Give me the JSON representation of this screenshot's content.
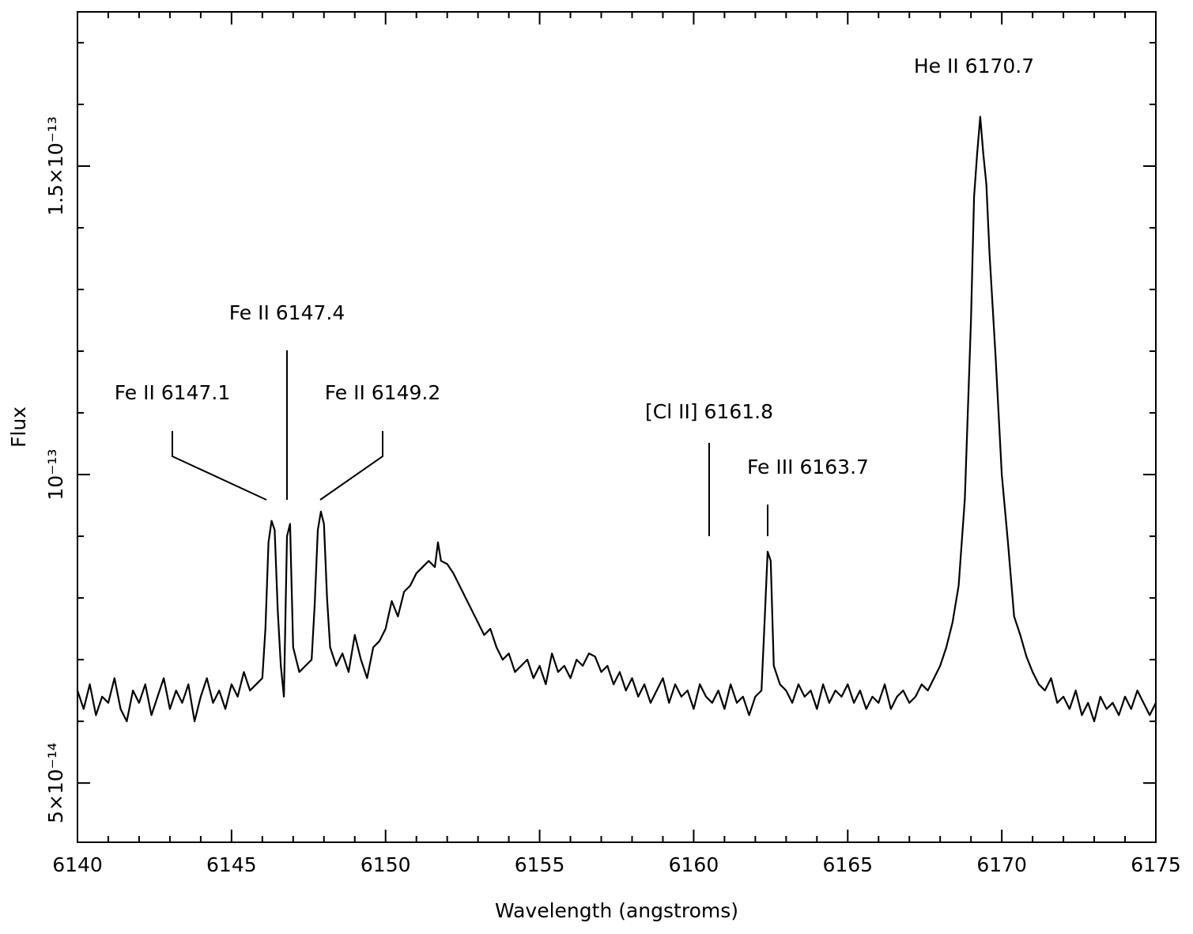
{
  "chart_data": {
    "type": "line",
    "x_label": "Wavelength (angstroms)",
    "y_label": "Flux",
    "color": "#000000",
    "xlim": [
      6140,
      6175
    ],
    "xticks": [
      6140,
      6145,
      6150,
      6155,
      6160,
      6165,
      6170,
      6175
    ],
    "xminorticks": [
      6141,
      6142,
      6143,
      6144,
      6146,
      6147,
      6148,
      6149,
      6151,
      6152,
      6153,
      6154,
      6156,
      6157,
      6158,
      6159,
      6161,
      6162,
      6163,
      6164,
      6166,
      6167,
      6168,
      6169,
      6171,
      6172,
      6173,
      6174
    ],
    "ylim": [
      4.04e-14,
      1.75e-13
    ],
    "yticks": [
      {
        "value": 5e-14,
        "label": "5×10⁻¹⁴"
      },
      {
        "value": 1e-13,
        "label": "10⁻¹³"
      },
      {
        "value": 1.5e-13,
        "label": "1.5×10⁻¹³"
      }
    ],
    "yminorticks": [
      6e-14,
      7e-14,
      8e-14,
      9e-14,
      1.1e-13,
      1.2e-13,
      1.3e-13,
      1.4e-13,
      1.6e-13,
      1.7e-13
    ],
    "annotations": [
      "He II 6170.7",
      "Fe II 6147.4",
      "Fe II 6147.1",
      "Fe II 6149.2",
      "[Cl II] 6161.8",
      "Fe III 6163.7"
    ],
    "x": [
      6140.0,
      6140.2,
      6140.4,
      6140.6,
      6140.8,
      6141.0,
      6141.2,
      6141.4,
      6141.6,
      6141.8,
      6142.0,
      6142.2,
      6142.4,
      6142.6,
      6142.8,
      6143.0,
      6143.2,
      6143.4,
      6143.6,
      6143.8,
      6144.0,
      6144.2,
      6144.4,
      6144.6,
      6144.8,
      6145.0,
      6145.2,
      6145.4,
      6145.6,
      6145.8,
      6146.0,
      6146.1,
      6146.2,
      6146.3,
      6146.4,
      6146.5,
      6146.6,
      6146.7,
      6146.8,
      6146.9,
      6147.0,
      6147.2,
      6147.4,
      6147.6,
      6147.7,
      6147.8,
      6147.9,
      6148.0,
      6148.1,
      6148.2,
      6148.4,
      6148.6,
      6148.8,
      6149.0,
      6149.2,
      6149.4,
      6149.6,
      6149.8,
      6150.0,
      6150.2,
      6150.4,
      6150.6,
      6150.8,
      6151.0,
      6151.2,
      6151.4,
      6151.6,
      6151.7,
      6151.8,
      6152.0,
      6152.2,
      6152.4,
      6152.6,
      6152.8,
      6153.0,
      6153.2,
      6153.4,
      6153.6,
      6153.8,
      6154.0,
      6154.2,
      6154.4,
      6154.6,
      6154.8,
      6155.0,
      6155.2,
      6155.4,
      6155.6,
      6155.8,
      6156.0,
      6156.2,
      6156.4,
      6156.6,
      6156.8,
      6157.0,
      6157.2,
      6157.4,
      6157.6,
      6157.8,
      6158.0,
      6158.2,
      6158.4,
      6158.6,
      6158.8,
      6159.0,
      6159.2,
      6159.4,
      6159.6,
      6159.8,
      6160.0,
      6160.2,
      6160.4,
      6160.6,
      6160.8,
      6161.0,
      6161.2,
      6161.4,
      6161.6,
      6161.8,
      6162.0,
      6162.2,
      6162.3,
      6162.4,
      6162.5,
      6162.6,
      6162.8,
      6163.0,
      6163.2,
      6163.4,
      6163.6,
      6163.8,
      6164.0,
      6164.2,
      6164.4,
      6164.6,
      6164.8,
      6165.0,
      6165.2,
      6165.4,
      6165.6,
      6165.8,
      6166.0,
      6166.2,
      6166.4,
      6166.6,
      6166.8,
      6167.0,
      6167.2,
      6167.4,
      6167.6,
      6167.8,
      6168.0,
      6168.2,
      6168.4,
      6168.6,
      6168.8,
      6169.0,
      6169.1,
      6169.2,
      6169.3,
      6169.4,
      6169.5,
      6169.6,
      6169.8,
      6170.0,
      6170.2,
      6170.4,
      6170.6,
      6170.8,
      6171.0,
      6171.2,
      6171.4,
      6171.6,
      6171.8,
      6172.0,
      6172.2,
      6172.4,
      6172.6,
      6172.8,
      6173.0,
      6173.2,
      6173.4,
      6173.6,
      6173.8,
      6174.0,
      6174.2,
      6174.4,
      6174.6,
      6174.8,
      6175.0
    ],
    "values": [
      6.5e-14,
      6.2e-14,
      6.6e-14,
      6.1e-14,
      6.4e-14,
      6.3e-14,
      6.7e-14,
      6.2e-14,
      6e-14,
      6.5e-14,
      6.3e-14,
      6.6e-14,
      6.1e-14,
      6.4e-14,
      6.7e-14,
      6.2e-14,
      6.5e-14,
      6.3e-14,
      6.6e-14,
      6e-14,
      6.4e-14,
      6.7e-14,
      6.3e-14,
      6.5e-14,
      6.2e-14,
      6.6e-14,
      6.4e-14,
      6.8e-14,
      6.5e-14,
      6.6e-14,
      6.7e-14,
      7.5e-14,
      8.9e-14,
      9.25e-14,
      9.1e-14,
      7.8e-14,
      6.9e-14,
      6.4e-14,
      9e-14,
      9.2e-14,
      7.2e-14,
      6.8e-14,
      6.9e-14,
      7e-14,
      7.9e-14,
      9.1e-14,
      9.4e-14,
      9.2e-14,
      8e-14,
      7.2e-14,
      6.9e-14,
      7.1e-14,
      6.8e-14,
      7.4e-14,
      7e-14,
      6.7e-14,
      7.2e-14,
      7.3e-14,
      7.5e-14,
      7.95e-14,
      7.7e-14,
      8.1e-14,
      8.2e-14,
      8.4e-14,
      8.5e-14,
      8.6e-14,
      8.5e-14,
      8.9e-14,
      8.6e-14,
      8.55e-14,
      8.4e-14,
      8.2e-14,
      8e-14,
      7.8e-14,
      7.6e-14,
      7.4e-14,
      7.5e-14,
      7.2e-14,
      7e-14,
      7.1e-14,
      6.8e-14,
      6.9e-14,
      7e-14,
      6.7e-14,
      6.9e-14,
      6.6e-14,
      7.1e-14,
      6.8e-14,
      6.9e-14,
      6.7e-14,
      7e-14,
      6.9e-14,
      7.1e-14,
      7.05e-14,
      6.8e-14,
      6.9e-14,
      6.6e-14,
      6.8e-14,
      6.5e-14,
      6.7e-14,
      6.4e-14,
      6.6e-14,
      6.3e-14,
      6.5e-14,
      6.7e-14,
      6.3e-14,
      6.6e-14,
      6.4e-14,
      6.5e-14,
      6.2e-14,
      6.6e-14,
      6.4e-14,
      6.3e-14,
      6.5e-14,
      6.2e-14,
      6.6e-14,
      6.3e-14,
      6.4e-14,
      6.1e-14,
      6.4e-14,
      6.5e-14,
      7.6e-14,
      8.75e-14,
      8.6e-14,
      6.9e-14,
      6.6e-14,
      6.5e-14,
      6.3e-14,
      6.6e-14,
      6.4e-14,
      6.5e-14,
      6.2e-14,
      6.6e-14,
      6.3e-14,
      6.5e-14,
      6.4e-14,
      6.6e-14,
      6.3e-14,
      6.5e-14,
      6.2e-14,
      6.4e-14,
      6.3e-14,
      6.6e-14,
      6.2e-14,
      6.4e-14,
      6.5e-14,
      6.3e-14,
      6.4e-14,
      6.6e-14,
      6.5e-14,
      6.7e-14,
      6.9e-14,
      7.2e-14,
      7.6e-14,
      8.2e-14,
      9.6e-14,
      1.25e-13,
      1.45e-13,
      1.52e-13,
      1.58e-13,
      1.52e-13,
      1.47e-13,
      1.36e-13,
      1.19e-13,
      1e-13,
      8.9e-14,
      7.7e-14,
      7.4e-14,
      7.05e-14,
      6.8e-14,
      6.6e-14,
      6.5e-14,
      6.7e-14,
      6.3e-14,
      6.4e-14,
      6.2e-14,
      6.5e-14,
      6.1e-14,
      6.3e-14,
      6e-14,
      6.4e-14,
      6.2e-14,
      6.3e-14,
      6.1e-14,
      6.4e-14,
      6.2e-14,
      6.5e-14,
      6.3e-14,
      6.1e-14,
      6.3e-14
    ]
  }
}
